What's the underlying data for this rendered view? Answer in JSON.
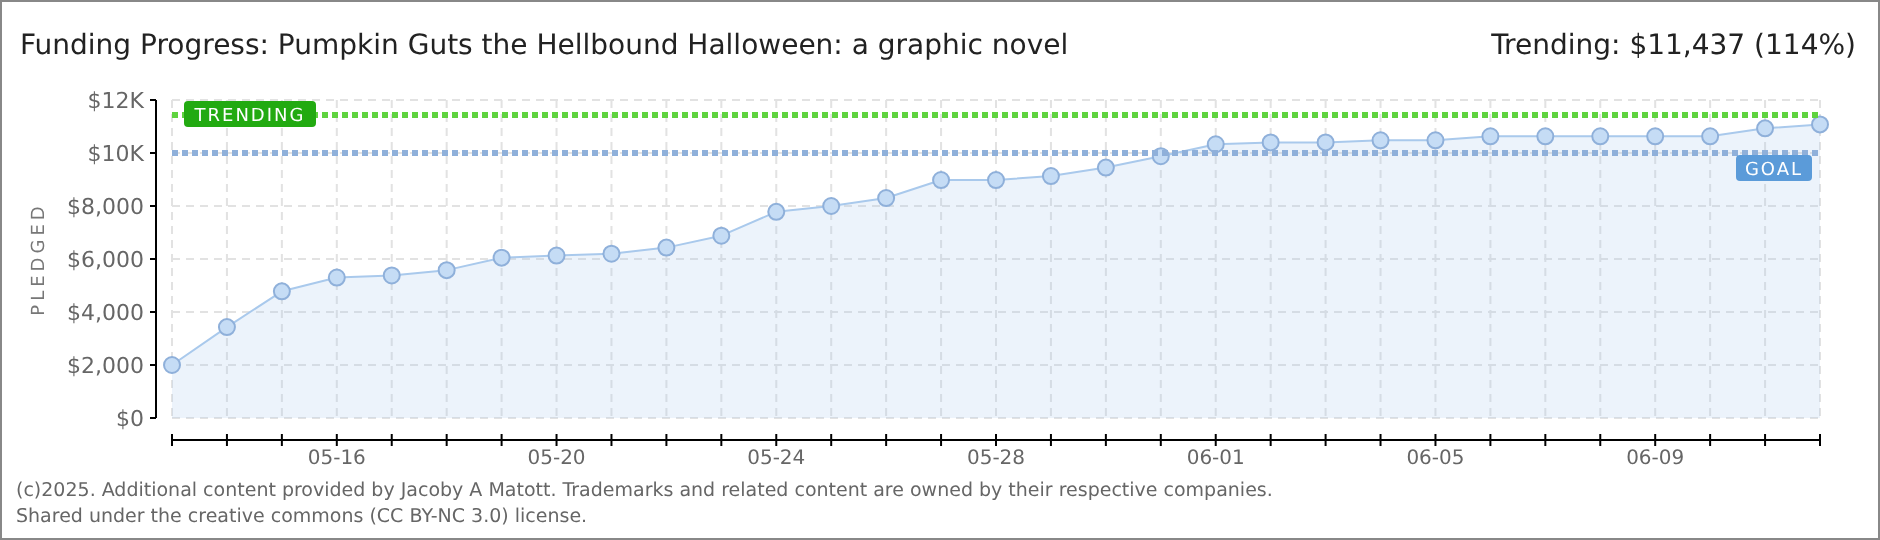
{
  "chart_data": {
    "type": "area",
    "title": "Funding Progress: Pumpkin Guts the Hellbound Halloween: a graphic novel",
    "subtitle": "Trending: $11,437 (114%)",
    "ylabel": "PLEDGED",
    "x": [
      "--05-13",
      "--05-14",
      "--05-15",
      "--05-16",
      "--05-17",
      "--05-18",
      "--05-19",
      "--05-20",
      "--05-21",
      "--05-22",
      "--05-23",
      "--05-24",
      "--05-25",
      "--05-26",
      "--05-27",
      "--05-28",
      "--05-29",
      "--05-30",
      "--05-31",
      "--06-01",
      "--06-02",
      "--06-03",
      "--06-04",
      "--06-05",
      "--06-06",
      "--06-07",
      "--06-08",
      "--06-09",
      "--06-10",
      "--06-11",
      "--06-12"
    ],
    "series": [
      {
        "color": "#a9c9ec",
        "values": [
          2000,
          3430,
          4780,
          5300,
          5380,
          5580,
          6050,
          6130,
          6200,
          6430,
          6880,
          7780,
          8000,
          8300,
          8980,
          8980,
          9130,
          9450,
          9880,
          10330,
          10400,
          10400,
          10480,
          10480,
          10630,
          10630,
          10630,
          10630,
          10630,
          10930,
          11080
        ]
      }
    ],
    "xlim": [
      "--05-13",
      "--06-12"
    ],
    "xticks": [
      {
        "value": "--05-13",
        "label": null
      },
      {
        "value": "--05-14",
        "label": null
      },
      {
        "value": "--05-15",
        "label": null
      },
      {
        "value": "--05-16",
        "label": "05-16"
      },
      {
        "value": "--05-17",
        "label": null
      },
      {
        "value": "--05-18",
        "label": null
      },
      {
        "value": "--05-19",
        "label": null
      },
      {
        "value": "--05-20",
        "label": "05-20"
      },
      {
        "value": "--05-21",
        "label": null
      },
      {
        "value": "--05-22",
        "label": null
      },
      {
        "value": "--05-23",
        "label": null
      },
      {
        "value": "--05-24",
        "label": "05-24"
      },
      {
        "value": "--05-25",
        "label": null
      },
      {
        "value": "--05-26",
        "label": null
      },
      {
        "value": "--05-27",
        "label": null
      },
      {
        "value": "--05-28",
        "label": "05-28"
      },
      {
        "value": "--05-29",
        "label": null
      },
      {
        "value": "--05-30",
        "label": null
      },
      {
        "value": "--05-31",
        "label": null
      },
      {
        "value": "--06-01",
        "label": "06-01"
      },
      {
        "value": "--06-02",
        "label": null
      },
      {
        "value": "--06-03",
        "label": null
      },
      {
        "value": "--06-04",
        "label": null
      },
      {
        "value": "--06-05",
        "label": "06-05"
      },
      {
        "value": "--06-06",
        "label": null
      },
      {
        "value": "--06-07",
        "label": null
      },
      {
        "value": "--06-08",
        "label": null
      },
      {
        "value": "--06-09",
        "label": "06-09"
      },
      {
        "value": "--06-10",
        "label": null
      },
      {
        "value": "--06-11",
        "label": null
      },
      {
        "value": "--06-12",
        "label": null
      }
    ],
    "ylim": [
      0,
      12000
    ],
    "yticks": [
      {
        "value": 0,
        "label": "$0"
      },
      {
        "value": 2000,
        "label": "$2,000"
      },
      {
        "value": 4000,
        "label": "$4,000"
      },
      {
        "value": 6000,
        "label": "$6,000"
      },
      {
        "value": 8000,
        "label": "$8,000"
      },
      {
        "value": 10000,
        "label": "$10K"
      },
      {
        "value": 12000,
        "label": "$12K"
      }
    ],
    "ref_lines": [
      {
        "axis": "y",
        "value": 11437,
        "label": "TRENDING",
        "color": "#5fd33f",
        "line_style": "dotted"
      },
      {
        "axis": "y",
        "value": 10000,
        "label": "GOAL",
        "color": "#8fb0da",
        "line_style": "dotted"
      }
    ],
    "grid": true,
    "marker": "circle",
    "annotations": [
      "(c)2025. Additional content provided by Jacoby A Matott. Trademarks and related content are owned by their respective companies.",
      "Shared under the creative commons (CC BY-NC 3.0) license."
    ]
  }
}
